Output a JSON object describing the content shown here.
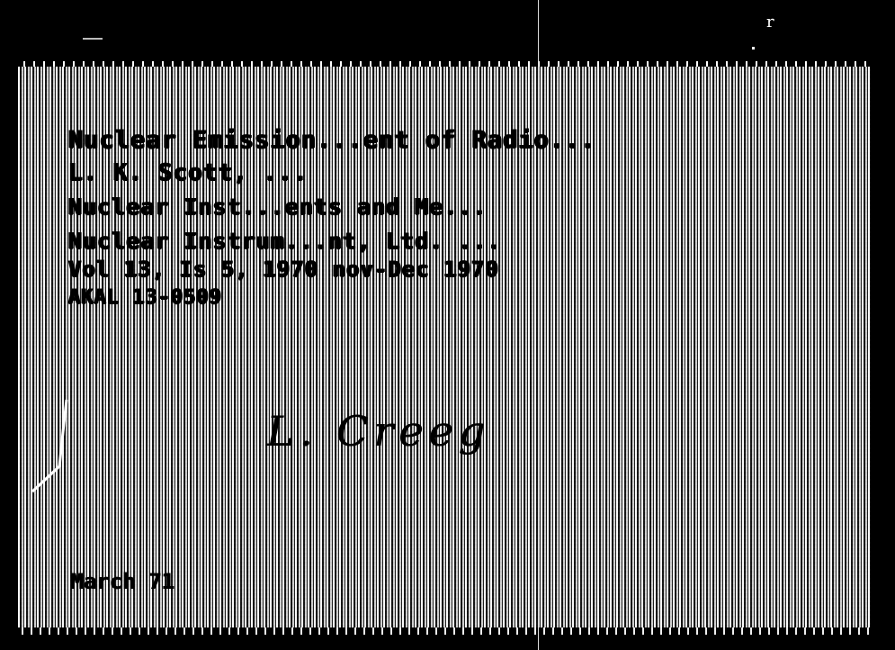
{
  "document": {
    "lines": [
      "Nuclear Emission...ent of Radio...",
      "L. K. Scott, ...",
      "Nuclear Inst...ents and Me...",
      "Nuclear Instrum...nt, Ltd. ...",
      "Vol 13, Is 5, 1970 nov-Dec 1970",
      "AKAL 13-0509"
    ],
    "signature": "L. Creeg",
    "date_stamp": "March 71"
  },
  "marks": {
    "corner": "r"
  }
}
